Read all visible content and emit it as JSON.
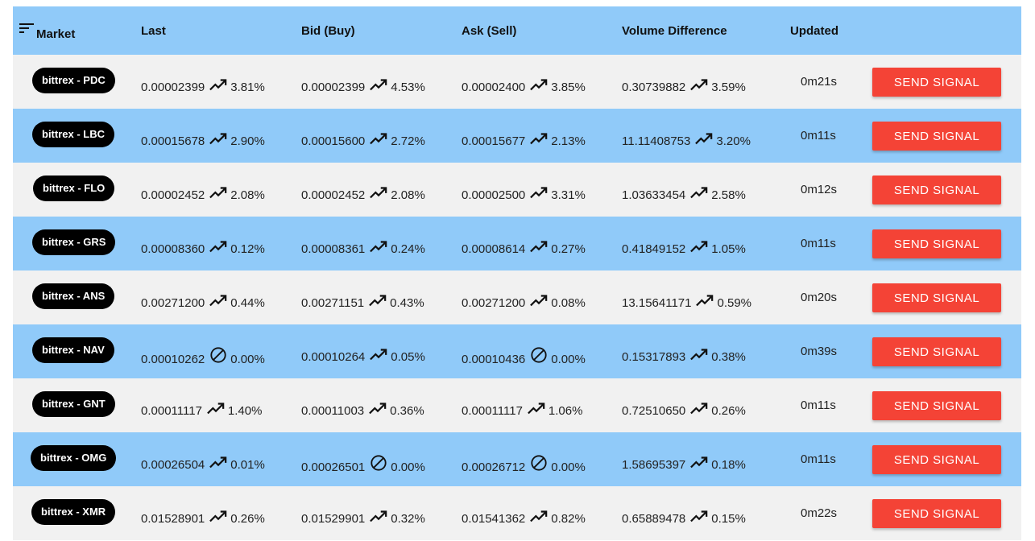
{
  "columns": {
    "market": "Market",
    "last": "Last",
    "bid": "Bid (Buy)",
    "ask": "Ask (Sell)",
    "volume": "Volume Difference",
    "updated": "Updated"
  },
  "button_label": "SEND SIGNAL",
  "colors": {
    "header_bg": "#90caf9",
    "row_light": "#f1f1f1",
    "row_blue": "#90caf9",
    "button": "#f44336",
    "pill": "#000000"
  },
  "rows": [
    {
      "market": "bittrex - PDC",
      "last": {
        "value": "0.00002399",
        "icon": "trending-up-icon",
        "pct": "3.81%"
      },
      "bid": {
        "value": "0.00002399",
        "icon": "trending-up-icon",
        "pct": "4.53%"
      },
      "ask": {
        "value": "0.00002400",
        "icon": "trending-up-icon",
        "pct": "3.85%"
      },
      "volume": {
        "value": "0.30739882",
        "icon": "trending-up-icon",
        "pct": "3.59%"
      },
      "updated": "0m21s"
    },
    {
      "market": "bittrex - LBC",
      "last": {
        "value": "0.00015678",
        "icon": "trending-up-icon",
        "pct": "2.90%"
      },
      "bid": {
        "value": "0.00015600",
        "icon": "trending-up-icon",
        "pct": "2.72%"
      },
      "ask": {
        "value": "0.00015677",
        "icon": "trending-up-icon",
        "pct": "2.13%"
      },
      "volume": {
        "value": "11.11408753",
        "icon": "trending-up-icon",
        "pct": "3.20%"
      },
      "updated": "0m11s"
    },
    {
      "market": "bittrex - FLO",
      "last": {
        "value": "0.00002452",
        "icon": "trending-up-icon",
        "pct": "2.08%"
      },
      "bid": {
        "value": "0.00002452",
        "icon": "trending-up-icon",
        "pct": "2.08%"
      },
      "ask": {
        "value": "0.00002500",
        "icon": "trending-up-icon",
        "pct": "3.31%"
      },
      "volume": {
        "value": "1.03633454",
        "icon": "trending-up-icon",
        "pct": "2.58%"
      },
      "updated": "0m12s"
    },
    {
      "market": "bittrex - GRS",
      "last": {
        "value": "0.00008360",
        "icon": "trending-up-icon",
        "pct": "0.12%"
      },
      "bid": {
        "value": "0.00008361",
        "icon": "trending-up-icon",
        "pct": "0.24%"
      },
      "ask": {
        "value": "0.00008614",
        "icon": "trending-up-icon",
        "pct": "0.27%"
      },
      "volume": {
        "value": "0.41849152",
        "icon": "trending-up-icon",
        "pct": "1.05%"
      },
      "updated": "0m11s"
    },
    {
      "market": "bittrex - ANS",
      "last": {
        "value": "0.00271200",
        "icon": "trending-up-icon",
        "pct": "0.44%"
      },
      "bid": {
        "value": "0.00271151",
        "icon": "trending-up-icon",
        "pct": "0.43%"
      },
      "ask": {
        "value": "0.00271200",
        "icon": "trending-up-icon",
        "pct": "0.08%"
      },
      "volume": {
        "value": "13.15641171",
        "icon": "trending-up-icon",
        "pct": "0.59%"
      },
      "updated": "0m20s"
    },
    {
      "market": "bittrex - NAV",
      "last": {
        "value": "0.00010262",
        "icon": "no-change-icon",
        "pct": "0.00%"
      },
      "bid": {
        "value": "0.00010264",
        "icon": "trending-up-icon",
        "pct": "0.05%"
      },
      "ask": {
        "value": "0.00010436",
        "icon": "no-change-icon",
        "pct": "0.00%"
      },
      "volume": {
        "value": "0.15317893",
        "icon": "trending-up-icon",
        "pct": "0.38%"
      },
      "updated": "0m39s"
    },
    {
      "market": "bittrex - GNT",
      "last": {
        "value": "0.00011117",
        "icon": "trending-up-icon",
        "pct": "1.40%"
      },
      "bid": {
        "value": "0.00011003",
        "icon": "trending-up-icon",
        "pct": "0.36%"
      },
      "ask": {
        "value": "0.00011117",
        "icon": "trending-up-icon",
        "pct": "1.06%"
      },
      "volume": {
        "value": "0.72510650",
        "icon": "trending-up-icon",
        "pct": "0.26%"
      },
      "updated": "0m11s"
    },
    {
      "market": "bittrex - OMG",
      "last": {
        "value": "0.00026504",
        "icon": "trending-up-icon",
        "pct": "0.01%"
      },
      "bid": {
        "value": "0.00026501",
        "icon": "no-change-icon",
        "pct": "0.00%"
      },
      "ask": {
        "value": "0.00026712",
        "icon": "no-change-icon",
        "pct": "0.00%"
      },
      "volume": {
        "value": "1.58695397",
        "icon": "trending-up-icon",
        "pct": "0.18%"
      },
      "updated": "0m11s"
    },
    {
      "market": "bittrex - XMR",
      "last": {
        "value": "0.01528901",
        "icon": "trending-up-icon",
        "pct": "0.26%"
      },
      "bid": {
        "value": "0.01529901",
        "icon": "trending-up-icon",
        "pct": "0.32%"
      },
      "ask": {
        "value": "0.01541362",
        "icon": "trending-up-icon",
        "pct": "0.82%"
      },
      "volume": {
        "value": "0.65889478",
        "icon": "trending-up-icon",
        "pct": "0.15%"
      },
      "updated": "0m22s"
    }
  ]
}
